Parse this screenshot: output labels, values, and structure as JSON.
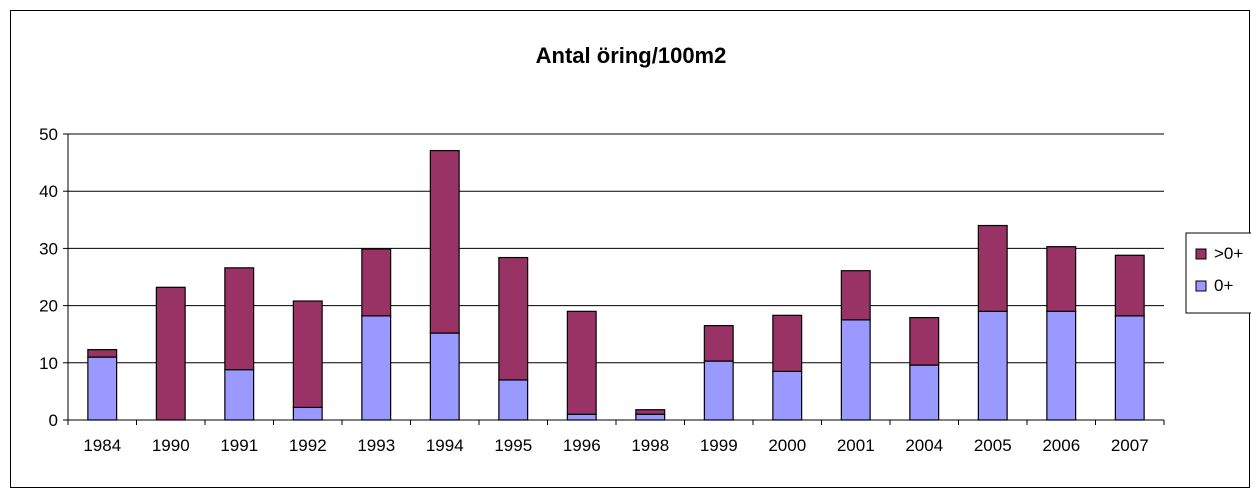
{
  "chart_data": {
    "type": "bar",
    "stacked": true,
    "title": "Antal öring/100m2",
    "xlabel": "",
    "ylabel": "",
    "categories": [
      "1984",
      "1990",
      "1991",
      "1992",
      "1993",
      "1994",
      "1995",
      "1996",
      "1998",
      "1999",
      "2000",
      "2001",
      "2004",
      "2005",
      "2006",
      "2007"
    ],
    "series": [
      {
        "name": "0+",
        "color": "#9999ff",
        "values": [
          11.0,
          0.0,
          8.8,
          2.2,
          18.2,
          15.2,
          7.0,
          1.0,
          1.0,
          10.3,
          8.5,
          17.5,
          9.6,
          19.0,
          19.0,
          18.2
        ]
      },
      {
        "name": ">0+",
        "color": "#993366",
        "values": [
          1.3,
          23.2,
          17.8,
          18.6,
          11.7,
          31.9,
          21.4,
          18.0,
          0.8,
          6.2,
          9.8,
          8.6,
          8.3,
          15.0,
          11.3,
          10.6
        ]
      }
    ],
    "ylim": [
      0,
      50
    ],
    "yticks": [
      0,
      10,
      20,
      30,
      40,
      50
    ],
    "grid": true,
    "legend": {
      "position": "right",
      "order": [
        ">0+",
        "0+"
      ]
    }
  }
}
